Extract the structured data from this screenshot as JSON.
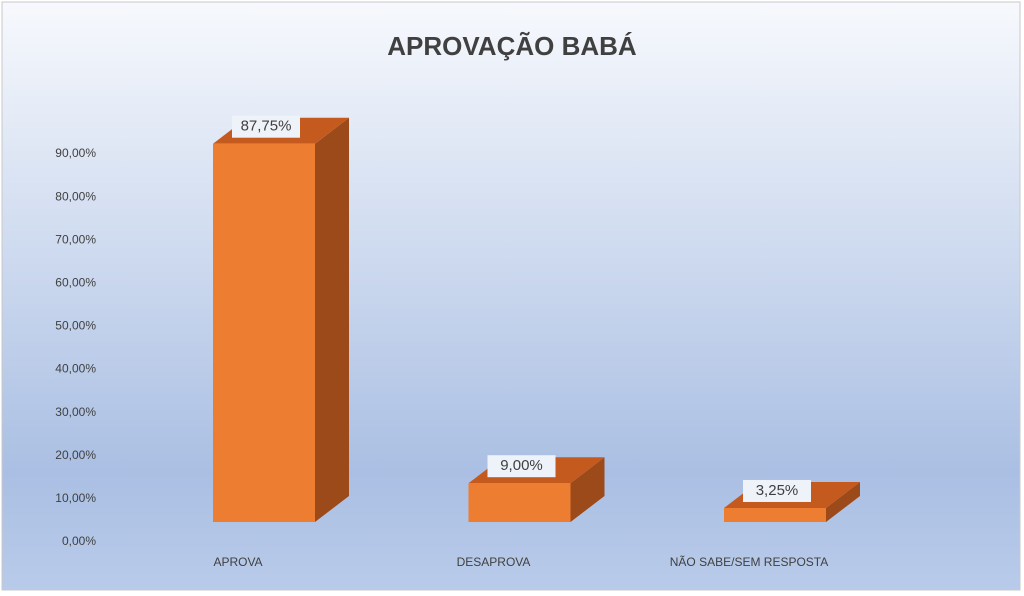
{
  "chart_data": {
    "type": "bar3d",
    "title": "APROVAÇÃO BABÁ",
    "categories": [
      "APROVA",
      "DESAPROVA",
      "NÃO SABE/SEM RESPOSTA"
    ],
    "values": [
      87.75,
      9,
      3.25
    ],
    "value_labels": [
      "87,75%",
      "9,00%",
      "3,25%"
    ],
    "color": "#ed7d31",
    "ylim": [
      0,
      90
    ],
    "yticks": [
      {
        "value": 0,
        "label": "0,00%"
      },
      {
        "value": 10,
        "label": "10,00%"
      },
      {
        "value": 20,
        "label": "20,00%"
      },
      {
        "value": 30,
        "label": "30,00%"
      },
      {
        "value": 40,
        "label": "40,00%"
      },
      {
        "value": 50,
        "label": "50,00%"
      },
      {
        "value": 60,
        "label": "60,00%"
      },
      {
        "value": 70,
        "label": "70,00%"
      },
      {
        "value": 80,
        "label": "80,00%"
      },
      {
        "value": 90,
        "label": "90,00%"
      }
    ]
  }
}
